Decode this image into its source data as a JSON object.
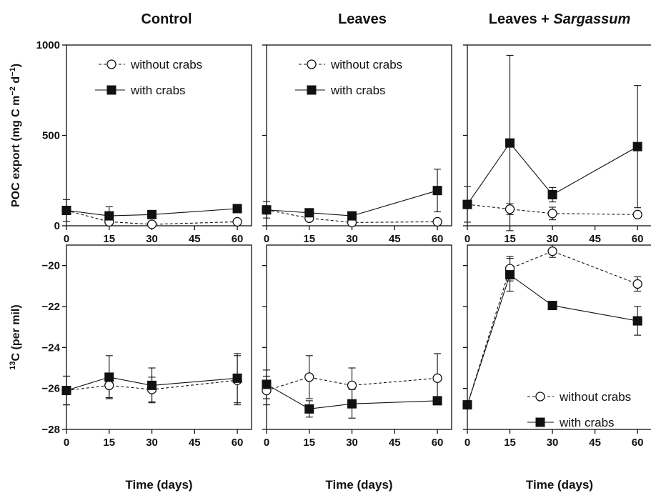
{
  "chart_data": {
    "type": "line",
    "columns": [
      {
        "title_parts": [
          {
            "text": "Control",
            "italic": false
          }
        ]
      },
      {
        "title_parts": [
          {
            "text": "Leaves",
            "italic": false
          }
        ]
      },
      {
        "title_parts": [
          {
            "text": "Leaves + ",
            "italic": false
          },
          {
            "text": "Sargassum",
            "italic": true
          }
        ]
      }
    ],
    "x": [
      0,
      15,
      30,
      60
    ],
    "x_ticks": [
      0,
      15,
      30,
      45,
      60
    ],
    "xlabel": "Time (days)",
    "rows": [
      {
        "ylabel_parts": [
          {
            "text": "POC export (mg C m",
            "sup": false
          },
          {
            "text": "−2",
            "sup": true
          },
          {
            "text": " d",
            "sup": false
          },
          {
            "text": "−1",
            "sup": true
          },
          {
            "text": ")",
            "sup": false
          }
        ],
        "ylim": [
          0,
          1000
        ],
        "y_ticks": [
          0,
          500,
          1000
        ],
        "panels": [
          {
            "legend": "top",
            "series": [
              {
                "name": "without crabs",
                "marker": "open-circle",
                "line": "dashed",
                "values": [
                  85,
                  22,
                  8,
                  22
                ],
                "err": [
                  0,
                  5,
                  3,
                  5
                ]
              },
              {
                "name": "with crabs",
                "marker": "filled-square",
                "line": "solid",
                "values": [
                  85,
                  55,
                  62,
                  95
                ],
                "err": [
                  60,
                  50,
                  0,
                  10
                ]
              }
            ]
          },
          {
            "legend": "top",
            "series": [
              {
                "name": "without crabs",
                "marker": "open-circle",
                "line": "dashed",
                "values": [
                  88,
                  42,
                  18,
                  22
                ],
                "err": [
                  5,
                  5,
                  3,
                  5
                ]
              },
              {
                "name": "with crabs",
                "marker": "filled-square",
                "line": "solid",
                "values": [
                  88,
                  72,
                  55,
                  195
                ],
                "err": [
                  45,
                  20,
                  0,
                  118
                ]
              }
            ]
          },
          {
            "legend": "none",
            "series": [
              {
                "name": "without crabs",
                "marker": "open-circle",
                "line": "dashed",
                "values": [
                  118,
                  92,
                  68,
                  62
                ],
                "err": [
                  5,
                  30,
                  35,
                  15
                ]
              },
              {
                "name": "with crabs",
                "marker": "filled-square",
                "line": "solid",
                "values": [
                  118,
                  458,
                  172,
                  438
                ],
                "err": [
                  98,
                  485,
                  40,
                  338
                ]
              }
            ]
          }
        ]
      },
      {
        "ylabel_parts": [
          {
            "text": "13",
            "sup": true
          },
          {
            "text": "C (per mil)",
            "sup": false
          }
        ],
        "ylim": [
          -28,
          -19
        ],
        "y_ticks": [
          -28,
          -26,
          -24,
          -22,
          -20
        ],
        "panels": [
          {
            "legend": "none",
            "series": [
              {
                "name": "without crabs",
                "marker": "open-circle",
                "line": "dashed",
                "values": [
                  -26.1,
                  -25.85,
                  -26.05,
                  -25.6
                ],
                "err": [
                  0.7,
                  0.6,
                  0.6,
                  1.2
                ]
              },
              {
                "name": "with crabs",
                "marker": "filled-square",
                "line": "solid",
                "values": [
                  -26.1,
                  -25.45,
                  -25.85,
                  -25.5
                ],
                "err": [
                  0.7,
                  1.05,
                  0.85,
                  1.2
                ]
              }
            ]
          },
          {
            "legend": "none",
            "series": [
              {
                "name": "without crabs",
                "marker": "open-circle",
                "line": "dashed",
                "values": [
                  -26.1,
                  -25.45,
                  -25.85,
                  -25.5
                ],
                "err": [
                  0.7,
                  1.05,
                  0.85,
                  1.2
                ]
              },
              {
                "name": "with crabs",
                "marker": "filled-square",
                "line": "solid",
                "values": [
                  -25.8,
                  -27.0,
                  -26.75,
                  -26.6
                ],
                "err": [
                  0.7,
                  0.4,
                  0.7,
                  0.1
                ]
              }
            ]
          },
          {
            "legend": "bottom",
            "series": [
              {
                "name": "without crabs",
                "marker": "open-circle",
                "line": "dashed",
                "values": [
                  -26.8,
                  -20.15,
                  -19.3,
                  -20.9
                ],
                "err": [
                  0.1,
                  0.6,
                  0.3,
                  0.35
                ]
              },
              {
                "name": "with crabs",
                "marker": "filled-square",
                "line": "solid",
                "values": [
                  -26.8,
                  -20.45,
                  -21.95,
                  -22.7
                ],
                "err": [
                  0.1,
                  0.8,
                  0.1,
                  0.7
                ]
              }
            ]
          }
        ]
      }
    ]
  }
}
